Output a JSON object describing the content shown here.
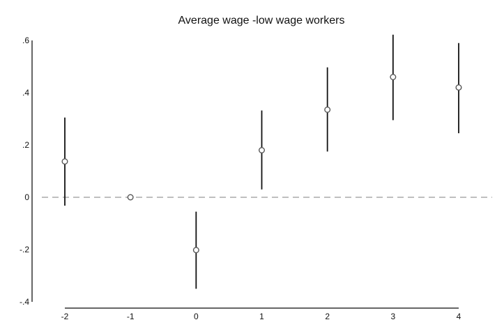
{
  "chart_data": {
    "type": "scatter",
    "subtype": "coefficient-plot-with-confidence-intervals",
    "title": "Average wage -low wage workers",
    "xlabel": "",
    "ylabel": "",
    "x_categories": [
      "-2",
      "-1",
      "0",
      "1",
      "2",
      "3",
      "4"
    ],
    "x": [
      -2,
      -1,
      0,
      1,
      2,
      3,
      4
    ],
    "y": [
      0.137,
      0.0,
      -0.202,
      0.18,
      0.335,
      0.46,
      0.42
    ],
    "ci_lower": [
      -0.032,
      0.0,
      -0.35,
      0.03,
      0.175,
      0.295,
      0.245
    ],
    "ci_upper": [
      0.305,
      0.0,
      -0.055,
      0.332,
      0.497,
      0.622,
      0.59
    ],
    "ylim": [
      -0.4,
      0.6
    ],
    "y_ticks": [
      -0.4,
      -0.2,
      0,
      0.2,
      0.4,
      0.6
    ],
    "y_tick_labels": [
      "-.4",
      "-.2",
      "0",
      ".2",
      ".4",
      ".6"
    ],
    "reference_line": {
      "y": 0,
      "style": "dashed"
    },
    "grid": false,
    "legend": "none",
    "colors": {
      "marker": "#555555",
      "ci_line": "#111111",
      "reference_line": "#999999",
      "axis": "#333333"
    }
  }
}
